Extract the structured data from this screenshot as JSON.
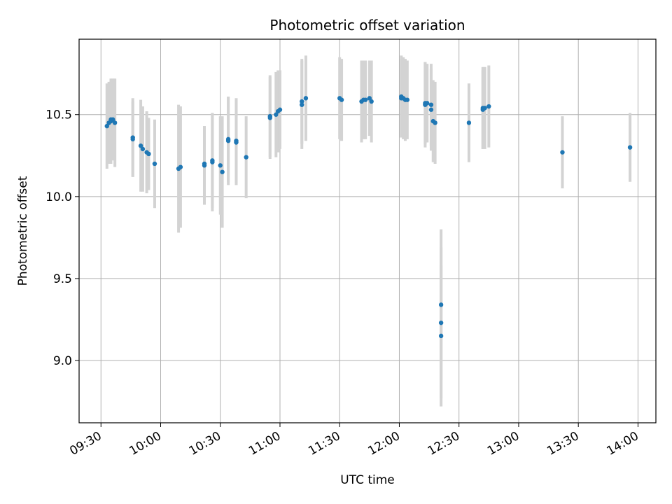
{
  "chart_data": {
    "type": "scatter",
    "title": "Photometric offset variation",
    "xlabel": "UTC time",
    "ylabel": "Photometric offset",
    "grid": true,
    "colors": {
      "points": "#1f77b4",
      "errorbars": "#d3d3d3",
      "grid": "#b0b0b0",
      "axes": "#000000"
    },
    "x_ticks": [
      "09:30",
      "10:00",
      "10:30",
      "11:00",
      "11:30",
      "12:00",
      "12:30",
      "13:00",
      "13:30",
      "14:00"
    ],
    "y_ticks": [
      "9.0",
      "9.5",
      "10.0",
      "10.5"
    ],
    "xlim": [
      "09:19",
      "14:09"
    ],
    "ylim": [
      8.62,
      10.96
    ],
    "points": [
      {
        "t": "09:33",
        "y": 10.43,
        "err": 0.26
      },
      {
        "t": "09:34",
        "y": 10.45,
        "err": 0.25
      },
      {
        "t": "09:35",
        "y": 10.47,
        "err": 0.24
      },
      {
        "t": "09:35",
        "y": 10.46,
        "err": 0.26
      },
      {
        "t": "09:36",
        "y": 10.47,
        "err": 0.25
      },
      {
        "t": "09:37",
        "y": 10.45,
        "err": 0.27
      },
      {
        "t": "09:46",
        "y": 10.35,
        "err": 0.23
      },
      {
        "t": "09:46",
        "y": 10.36,
        "err": 0.24
      },
      {
        "t": "09:50",
        "y": 10.31,
        "err": 0.28
      },
      {
        "t": "09:51",
        "y": 10.29,
        "err": 0.26
      },
      {
        "t": "09:53",
        "y": 10.27,
        "err": 0.25
      },
      {
        "t": "09:54",
        "y": 10.26,
        "err": 0.22
      },
      {
        "t": "09:57",
        "y": 10.2,
        "err": 0.27
      },
      {
        "t": "10:09",
        "y": 10.17,
        "err": 0.39
      },
      {
        "t": "10:10",
        "y": 10.18,
        "err": 0.37
      },
      {
        "t": "10:22",
        "y": 10.2,
        "err": 0.23
      },
      {
        "t": "10:22",
        "y": 10.19,
        "err": 0.24
      },
      {
        "t": "10:26",
        "y": 10.21,
        "err": 0.3
      },
      {
        "t": "10:26",
        "y": 10.22,
        "err": 0.29
      },
      {
        "t": "10:30",
        "y": 10.19,
        "err": 0.3
      },
      {
        "t": "10:31",
        "y": 10.15,
        "err": 0.34
      },
      {
        "t": "10:34",
        "y": 10.34,
        "err": 0.27
      },
      {
        "t": "10:34",
        "y": 10.35,
        "err": 0.26
      },
      {
        "t": "10:38",
        "y": 10.34,
        "err": 0.26
      },
      {
        "t": "10:38",
        "y": 10.33,
        "err": 0.26
      },
      {
        "t": "10:43",
        "y": 10.24,
        "err": 0.25
      },
      {
        "t": "10:55",
        "y": 10.49,
        "err": 0.25
      },
      {
        "t": "10:55",
        "y": 10.48,
        "err": 0.25
      },
      {
        "t": "10:58",
        "y": 10.5,
        "err": 0.26
      },
      {
        "t": "10:59",
        "y": 10.52,
        "err": 0.25
      },
      {
        "t": "11:00",
        "y": 10.53,
        "err": 0.24
      },
      {
        "t": "11:11",
        "y": 10.58,
        "err": 0.26
      },
      {
        "t": "11:11",
        "y": 10.56,
        "err": 0.27
      },
      {
        "t": "11:13",
        "y": 10.6,
        "err": 0.26
      },
      {
        "t": "11:30",
        "y": 10.6,
        "err": 0.25
      },
      {
        "t": "11:31",
        "y": 10.59,
        "err": 0.25
      },
      {
        "t": "11:41",
        "y": 10.58,
        "err": 0.25
      },
      {
        "t": "11:42",
        "y": 10.59,
        "err": 0.24
      },
      {
        "t": "11:43",
        "y": 10.59,
        "err": 0.24
      },
      {
        "t": "11:45",
        "y": 10.6,
        "err": 0.23
      },
      {
        "t": "11:46",
        "y": 10.58,
        "err": 0.25
      },
      {
        "t": "12:01",
        "y": 10.61,
        "err": 0.25
      },
      {
        "t": "12:01",
        "y": 10.6,
        "err": 0.24
      },
      {
        "t": "12:02",
        "y": 10.6,
        "err": 0.25
      },
      {
        "t": "12:03",
        "y": 10.59,
        "err": 0.25
      },
      {
        "t": "12:04",
        "y": 10.59,
        "err": 0.24
      },
      {
        "t": "12:13",
        "y": 10.57,
        "err": 0.25
      },
      {
        "t": "12:13",
        "y": 10.56,
        "err": 0.26
      },
      {
        "t": "12:14",
        "y": 10.57,
        "err": 0.24
      },
      {
        "t": "12:16",
        "y": 10.56,
        "err": 0.25
      },
      {
        "t": "12:16",
        "y": 10.53,
        "err": 0.25
      },
      {
        "t": "12:17",
        "y": 10.46,
        "err": 0.25
      },
      {
        "t": "12:18",
        "y": 10.45,
        "err": 0.25
      },
      {
        "t": "12:21",
        "y": 9.34,
        "err": 0.46
      },
      {
        "t": "12:21",
        "y": 9.23,
        "err": 0.46
      },
      {
        "t": "12:21",
        "y": 9.15,
        "err": 0.43
      },
      {
        "t": "12:35",
        "y": 10.45,
        "err": 0.24
      },
      {
        "t": "12:42",
        "y": 10.54,
        "err": 0.25
      },
      {
        "t": "12:42",
        "y": 10.53,
        "err": 0.24
      },
      {
        "t": "12:43",
        "y": 10.54,
        "err": 0.25
      },
      {
        "t": "12:45",
        "y": 10.55,
        "err": 0.25
      },
      {
        "t": "13:22",
        "y": 10.27,
        "err": 0.22
      },
      {
        "t": "13:56",
        "y": 10.3,
        "err": 0.21
      }
    ]
  }
}
